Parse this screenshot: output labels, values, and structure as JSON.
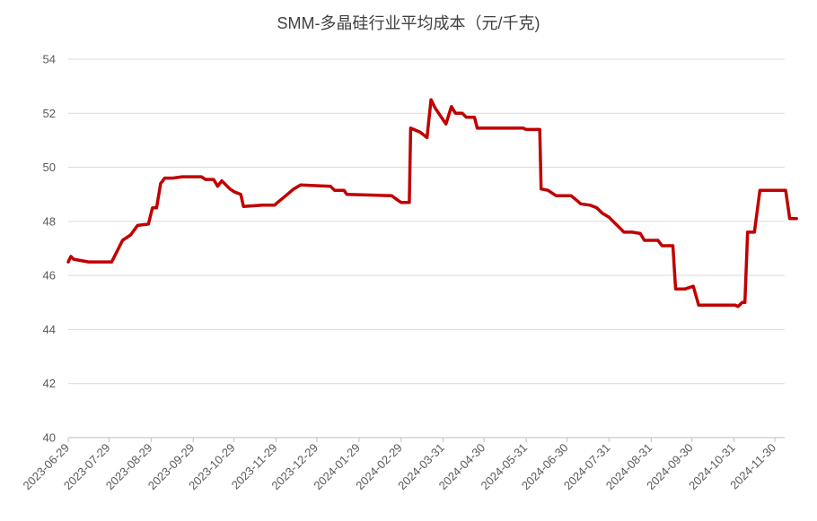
{
  "chart_data": {
    "type": "line",
    "title": "SMM-多晶硅行业平均成本（元/千克)",
    "xlabel": "",
    "ylabel": "",
    "ylim": [
      40,
      54
    ],
    "yticks": [
      40,
      42,
      44,
      46,
      48,
      50,
      52,
      54
    ],
    "x_tick_labels": [
      "2023-06-29",
      "2023-07-29",
      "2023-08-29",
      "2023-09-29",
      "2023-10-29",
      "2023-11-29",
      "2023-12-29",
      "2024-01-29",
      "2024-02-29",
      "2024-03-31",
      "2024-04-30",
      "2024-05-31",
      "2024-06-30",
      "2024-07-31",
      "2024-08-31",
      "2024-09-30",
      "2024-10-31",
      "2024-11-30"
    ],
    "grid": "horizontal",
    "line_color": "#c00000",
    "series": [
      {
        "name": "",
        "points": [
          [
            "2023-06-29",
            46.5
          ],
          [
            "2023-07-01",
            46.7
          ],
          [
            "2023-07-03",
            46.6
          ],
          [
            "2023-07-14",
            46.5
          ],
          [
            "2023-07-31",
            46.5
          ],
          [
            "2023-08-04",
            46.9
          ],
          [
            "2023-08-08",
            47.3
          ],
          [
            "2023-08-14",
            47.5
          ],
          [
            "2023-08-19",
            47.85
          ],
          [
            "2023-08-27",
            47.9
          ],
          [
            "2023-08-30",
            48.5
          ],
          [
            "2023-09-02",
            48.5
          ],
          [
            "2023-09-05",
            49.4
          ],
          [
            "2023-09-08",
            49.6
          ],
          [
            "2023-09-14",
            49.6
          ],
          [
            "2023-09-21",
            49.65
          ],
          [
            "2023-10-05",
            49.65
          ],
          [
            "2023-10-08",
            49.55
          ],
          [
            "2023-10-14",
            49.55
          ],
          [
            "2023-10-17",
            49.3
          ],
          [
            "2023-10-20",
            49.5
          ],
          [
            "2023-10-26",
            49.2
          ],
          [
            "2023-10-29",
            49.1
          ],
          [
            "2023-11-03",
            49.0
          ],
          [
            "2023-11-05",
            48.55
          ],
          [
            "2023-11-19",
            48.6
          ],
          [
            "2023-11-28",
            48.6
          ],
          [
            "2023-11-30",
            48.7
          ],
          [
            "2023-12-05",
            48.9
          ],
          [
            "2023-12-12",
            49.2
          ],
          [
            "2023-12-17",
            49.35
          ],
          [
            "2024-01-08",
            49.3
          ],
          [
            "2024-01-11",
            49.15
          ],
          [
            "2024-01-18",
            49.15
          ],
          [
            "2024-01-20",
            49.0
          ],
          [
            "2024-02-22",
            48.95
          ],
          [
            "2024-02-26",
            48.8
          ],
          [
            "2024-02-29",
            48.7
          ],
          [
            "2024-03-06",
            48.7
          ],
          [
            "2024-03-07",
            51.45
          ],
          [
            "2024-03-14",
            51.3
          ],
          [
            "2024-03-19",
            51.1
          ],
          [
            "2024-03-22",
            52.5
          ],
          [
            "2024-03-25",
            52.2
          ],
          [
            "2024-04-02",
            51.6
          ],
          [
            "2024-04-06",
            52.25
          ],
          [
            "2024-04-09",
            52.0
          ],
          [
            "2024-04-14",
            52.0
          ],
          [
            "2024-04-17",
            51.85
          ],
          [
            "2024-04-23",
            51.85
          ],
          [
            "2024-04-25",
            51.45
          ],
          [
            "2024-05-29",
            51.45
          ],
          [
            "2024-05-31",
            51.4
          ],
          [
            "2024-06-10",
            51.4
          ],
          [
            "2024-06-11",
            49.2
          ],
          [
            "2024-06-16",
            49.15
          ],
          [
            "2024-06-22",
            48.95
          ],
          [
            "2024-07-03",
            48.95
          ],
          [
            "2024-07-08",
            48.75
          ],
          [
            "2024-07-10",
            48.65
          ],
          [
            "2024-07-17",
            48.6
          ],
          [
            "2024-07-22",
            48.5
          ],
          [
            "2024-07-26",
            48.3
          ],
          [
            "2024-07-31",
            48.15
          ],
          [
            "2024-08-05",
            47.9
          ],
          [
            "2024-08-08",
            47.75
          ],
          [
            "2024-08-11",
            47.6
          ],
          [
            "2024-08-17",
            47.6
          ],
          [
            "2024-08-23",
            47.55
          ],
          [
            "2024-08-26",
            47.3
          ],
          [
            "2024-09-05",
            47.3
          ],
          [
            "2024-09-08",
            47.1
          ],
          [
            "2024-09-16",
            47.1
          ],
          [
            "2024-09-18",
            45.5
          ],
          [
            "2024-09-25",
            45.5
          ],
          [
            "2024-10-01",
            45.6
          ],
          [
            "2024-10-05",
            44.9
          ],
          [
            "2024-11-01",
            44.9
          ],
          [
            "2024-11-03",
            44.85
          ],
          [
            "2024-11-06",
            45.0
          ],
          [
            "2024-11-08",
            45.0
          ],
          [
            "2024-11-10",
            47.6
          ],
          [
            "2024-11-15",
            47.6
          ],
          [
            "2024-11-19",
            49.15
          ],
          [
            "2024-12-08",
            49.15
          ],
          [
            "2024-12-11",
            48.1
          ],
          [
            "2024-12-16",
            48.1
          ]
        ]
      }
    ]
  }
}
